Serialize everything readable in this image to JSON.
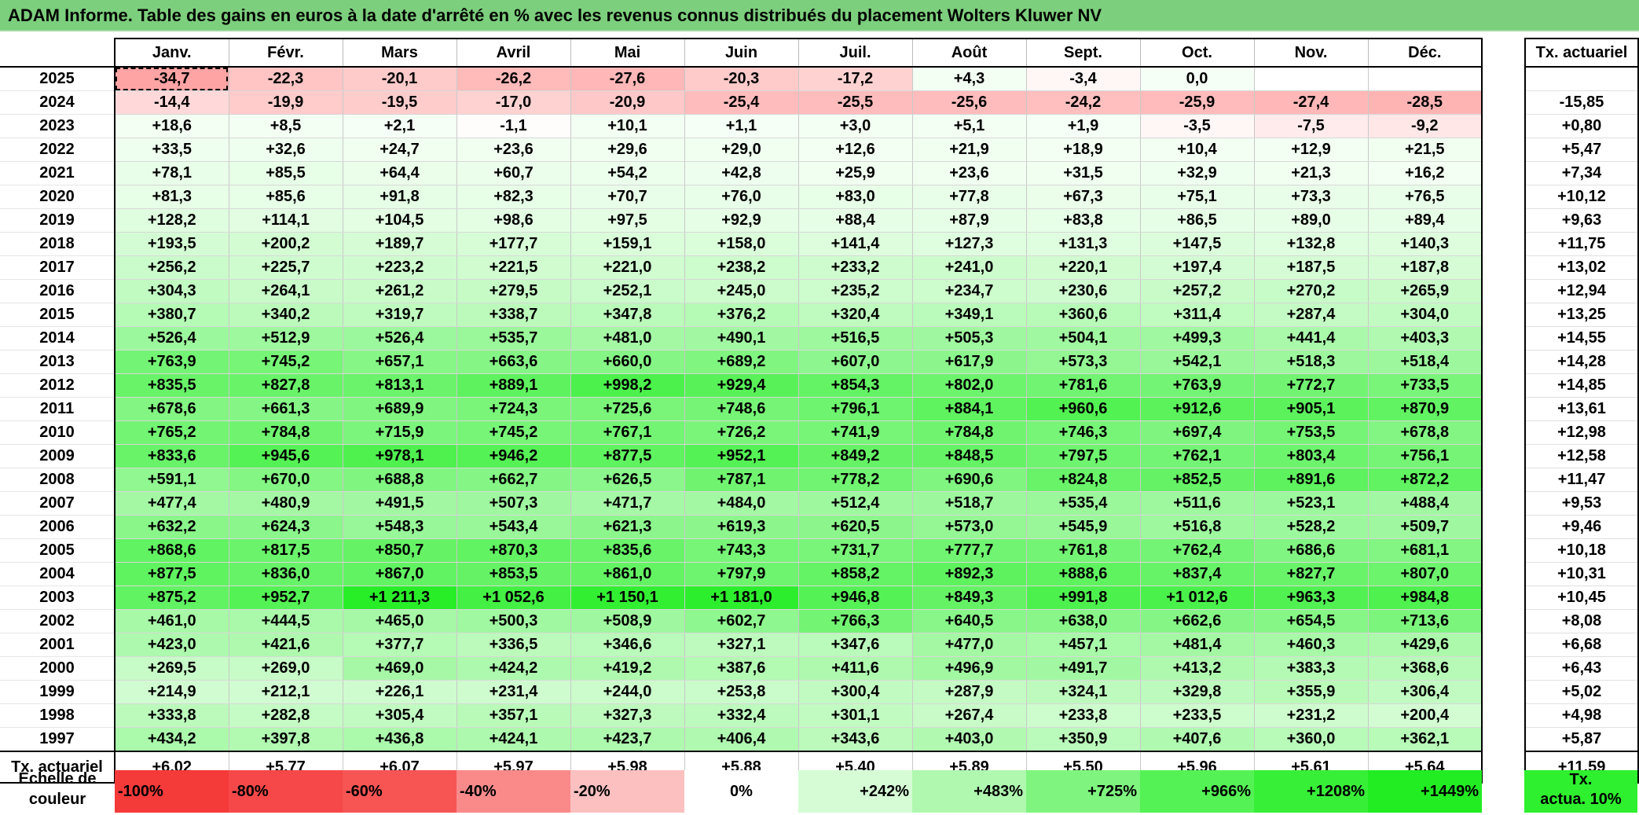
{
  "title": "ADAM Informe. Table des gains en euros à la date d'arrêté en % avec les revenus connus distribués du placement Wolters Kluwer NV",
  "months": [
    "Janv.",
    "Févr.",
    "Mars",
    "Avril",
    "Mai",
    "Juin",
    "Juil.",
    "Août",
    "Sept.",
    "Oct.",
    "Nov.",
    "Déc."
  ],
  "side_header": "Tx. actuariel",
  "rows": [
    {
      "year": "2025",
      "values": [
        "-34,7",
        "-22,3",
        "-20,1",
        "-26,2",
        "-27,6",
        "-20,3",
        "-17,2",
        "+4,3",
        "-3,4",
        "0,0",
        "",
        ""
      ],
      "tx": ""
    },
    {
      "year": "2024",
      "values": [
        "-14,4",
        "-19,9",
        "-19,5",
        "-17,0",
        "-20,9",
        "-25,4",
        "-25,5",
        "-25,6",
        "-24,2",
        "-25,9",
        "-27,4",
        "-28,5"
      ],
      "tx": "-15,85"
    },
    {
      "year": "2023",
      "values": [
        "+18,6",
        "+8,5",
        "+2,1",
        "-1,1",
        "+10,1",
        "+1,1",
        "+3,0",
        "+5,1",
        "+1,9",
        "-3,5",
        "-7,5",
        "-9,2"
      ],
      "tx": "+0,80"
    },
    {
      "year": "2022",
      "values": [
        "+33,5",
        "+32,6",
        "+24,7",
        "+23,6",
        "+29,6",
        "+29,0",
        "+12,6",
        "+21,9",
        "+18,9",
        "+10,4",
        "+12,9",
        "+21,5"
      ],
      "tx": "+5,47"
    },
    {
      "year": "2021",
      "values": [
        "+78,1",
        "+85,5",
        "+64,4",
        "+60,7",
        "+54,2",
        "+42,8",
        "+25,9",
        "+23,6",
        "+31,5",
        "+32,9",
        "+21,3",
        "+16,2"
      ],
      "tx": "+7,34"
    },
    {
      "year": "2020",
      "values": [
        "+81,3",
        "+85,6",
        "+91,8",
        "+82,3",
        "+70,7",
        "+76,0",
        "+83,0",
        "+77,8",
        "+67,3",
        "+75,1",
        "+73,3",
        "+76,5"
      ],
      "tx": "+10,12"
    },
    {
      "year": "2019",
      "values": [
        "+128,2",
        "+114,1",
        "+104,5",
        "+98,6",
        "+97,5",
        "+92,9",
        "+88,4",
        "+87,9",
        "+83,8",
        "+86,5",
        "+89,0",
        "+89,4"
      ],
      "tx": "+9,63"
    },
    {
      "year": "2018",
      "values": [
        "+193,5",
        "+200,2",
        "+189,7",
        "+177,7",
        "+159,1",
        "+158,0",
        "+141,4",
        "+127,3",
        "+131,3",
        "+147,5",
        "+132,8",
        "+140,3"
      ],
      "tx": "+11,75"
    },
    {
      "year": "2017",
      "values": [
        "+256,2",
        "+225,7",
        "+223,2",
        "+221,5",
        "+221,0",
        "+238,2",
        "+233,2",
        "+241,0",
        "+220,1",
        "+197,4",
        "+187,5",
        "+187,8"
      ],
      "tx": "+13,02"
    },
    {
      "year": "2016",
      "values": [
        "+304,3",
        "+264,1",
        "+261,2",
        "+279,5",
        "+252,1",
        "+245,0",
        "+235,2",
        "+234,7",
        "+230,6",
        "+257,2",
        "+270,2",
        "+265,9"
      ],
      "tx": "+12,94"
    },
    {
      "year": "2015",
      "values": [
        "+380,7",
        "+340,2",
        "+319,7",
        "+338,7",
        "+347,8",
        "+376,2",
        "+320,4",
        "+349,1",
        "+360,6",
        "+311,4",
        "+287,4",
        "+304,0"
      ],
      "tx": "+13,25"
    },
    {
      "year": "2014",
      "values": [
        "+526,4",
        "+512,9",
        "+526,4",
        "+535,7",
        "+481,0",
        "+490,1",
        "+516,5",
        "+505,3",
        "+504,1",
        "+499,3",
        "+441,4",
        "+403,3"
      ],
      "tx": "+14,55"
    },
    {
      "year": "2013",
      "values": [
        "+763,9",
        "+745,2",
        "+657,1",
        "+663,6",
        "+660,0",
        "+689,2",
        "+607,0",
        "+617,9",
        "+573,3",
        "+542,1",
        "+518,3",
        "+518,4"
      ],
      "tx": "+14,28"
    },
    {
      "year": "2012",
      "values": [
        "+835,5",
        "+827,8",
        "+813,1",
        "+889,1",
        "+998,2",
        "+929,4",
        "+854,3",
        "+802,0",
        "+781,6",
        "+763,9",
        "+772,7",
        "+733,5"
      ],
      "tx": "+14,85"
    },
    {
      "year": "2011",
      "values": [
        "+678,6",
        "+661,3",
        "+689,9",
        "+724,3",
        "+725,6",
        "+748,6",
        "+796,1",
        "+884,1",
        "+960,6",
        "+912,6",
        "+905,1",
        "+870,9"
      ],
      "tx": "+13,61"
    },
    {
      "year": "2010",
      "values": [
        "+765,2",
        "+784,8",
        "+715,9",
        "+745,2",
        "+767,1",
        "+726,2",
        "+741,9",
        "+784,8",
        "+746,3",
        "+697,4",
        "+753,5",
        "+678,8"
      ],
      "tx": "+12,98"
    },
    {
      "year": "2009",
      "values": [
        "+833,6",
        "+945,6",
        "+978,1",
        "+946,2",
        "+877,5",
        "+952,1",
        "+849,2",
        "+848,5",
        "+797,5",
        "+762,1",
        "+803,4",
        "+756,1"
      ],
      "tx": "+12,58"
    },
    {
      "year": "2008",
      "values": [
        "+591,1",
        "+670,0",
        "+688,8",
        "+662,7",
        "+626,5",
        "+787,1",
        "+778,2",
        "+690,6",
        "+824,8",
        "+852,5",
        "+891,6",
        "+872,2"
      ],
      "tx": "+11,47"
    },
    {
      "year": "2007",
      "values": [
        "+477,4",
        "+480,9",
        "+491,5",
        "+507,3",
        "+471,7",
        "+484,0",
        "+512,4",
        "+518,7",
        "+535,4",
        "+511,6",
        "+523,1",
        "+488,4"
      ],
      "tx": "+9,53"
    },
    {
      "year": "2006",
      "values": [
        "+632,2",
        "+624,3",
        "+548,3",
        "+543,4",
        "+621,3",
        "+619,3",
        "+620,5",
        "+573,0",
        "+545,9",
        "+516,8",
        "+528,2",
        "+509,7"
      ],
      "tx": "+9,46"
    },
    {
      "year": "2005",
      "values": [
        "+868,6",
        "+817,5",
        "+850,7",
        "+870,3",
        "+835,6",
        "+743,3",
        "+731,7",
        "+777,7",
        "+761,8",
        "+762,4",
        "+686,6",
        "+681,1"
      ],
      "tx": "+10,18"
    },
    {
      "year": "2004",
      "values": [
        "+877,5",
        "+836,0",
        "+867,0",
        "+853,5",
        "+861,0",
        "+797,9",
        "+858,2",
        "+892,3",
        "+888,6",
        "+837,4",
        "+827,7",
        "+807,0"
      ],
      "tx": "+10,31"
    },
    {
      "year": "2003",
      "values": [
        "+875,2",
        "+952,7",
        "+1 211,3",
        "+1 052,6",
        "+1 150,1",
        "+1 181,0",
        "+946,8",
        "+849,3",
        "+991,8",
        "+1 012,6",
        "+963,3",
        "+984,8"
      ],
      "tx": "+10,45"
    },
    {
      "year": "2002",
      "values": [
        "+461,0",
        "+444,5",
        "+465,0",
        "+500,3",
        "+508,9",
        "+602,7",
        "+766,3",
        "+640,5",
        "+638,0",
        "+662,6",
        "+654,5",
        "+713,6"
      ],
      "tx": "+8,08"
    },
    {
      "year": "2001",
      "values": [
        "+423,0",
        "+421,6",
        "+377,7",
        "+336,5",
        "+346,6",
        "+327,1",
        "+347,6",
        "+477,0",
        "+457,1",
        "+481,4",
        "+460,3",
        "+429,6"
      ],
      "tx": "+6,68"
    },
    {
      "year": "2000",
      "values": [
        "+269,5",
        "+269,0",
        "+469,0",
        "+424,2",
        "+419,2",
        "+387,6",
        "+411,6",
        "+496,9",
        "+491,7",
        "+413,2",
        "+383,3",
        "+368,6"
      ],
      "tx": "+6,43"
    },
    {
      "year": "1999",
      "values": [
        "+214,9",
        "+212,1",
        "+226,1",
        "+231,4",
        "+244,0",
        "+253,8",
        "+300,4",
        "+287,9",
        "+324,1",
        "+329,8",
        "+355,9",
        "+306,4"
      ],
      "tx": "+5,02"
    },
    {
      "year": "1998",
      "values": [
        "+333,8",
        "+282,8",
        "+305,4",
        "+357,1",
        "+327,3",
        "+332,4",
        "+301,1",
        "+267,4",
        "+233,8",
        "+233,5",
        "+231,2",
        "+200,4"
      ],
      "tx": "+4,98"
    },
    {
      "year": "1997",
      "values": [
        "+434,2",
        "+397,8",
        "+436,8",
        "+424,1",
        "+423,7",
        "+406,4",
        "+343,6",
        "+403,0",
        "+350,9",
        "+407,6",
        "+360,0",
        "+362,1"
      ],
      "tx": "+5,87"
    }
  ],
  "totals": {
    "label": "Tx. actuariel",
    "values": [
      "+6,02",
      "+5,77",
      "+6,07",
      "+5,97",
      "+5,98",
      "+5,88",
      "+5,40",
      "+5,89",
      "+5,50",
      "+5,96",
      "+5,61",
      "+5,64"
    ],
    "tx": "+11,59"
  },
  "scale": {
    "label_line1": "Echelle de",
    "label_line2": "couleur",
    "items": [
      {
        "label": "-100%",
        "color": "#f53a3a",
        "kind": "neg"
      },
      {
        "label": "-80%",
        "color": "#f64848",
        "kind": "neg"
      },
      {
        "label": "-60%",
        "color": "#f75454",
        "kind": "neg"
      },
      {
        "label": "-40%",
        "color": "#fa8a8a",
        "kind": "neg"
      },
      {
        "label": "-20%",
        "color": "#fcc0c0",
        "kind": "neg"
      },
      {
        "label": "0%",
        "color": "#ffffff",
        "kind": "zero"
      },
      {
        "label": "+242%",
        "color": "#d6fcd6",
        "kind": "pos"
      },
      {
        "label": "+483%",
        "color": "#b0f8b0",
        "kind": "pos"
      },
      {
        "label": "+725%",
        "color": "#7ff57f",
        "kind": "pos"
      },
      {
        "label": "+966%",
        "color": "#55f255",
        "kind": "pos"
      },
      {
        "label": "+1208%",
        "color": "#38ef38",
        "kind": "pos"
      },
      {
        "label": "+1449%",
        "color": "#22ec22",
        "kind": "pos"
      }
    ],
    "tx_line1": "Tx.",
    "tx_line2": "actua. 10%",
    "tx_color": "#2ef02e"
  },
  "chart_data": {
    "type": "heatmap",
    "title": "ADAM Informe. Table des gains en euros à la date d'arrêté en % avec les revenus connus distribués du placement Wolters Kluwer NV",
    "x": [
      "Janv.",
      "Févr.",
      "Mars",
      "Avril",
      "Mai",
      "Juin",
      "Juil.",
      "Août",
      "Sept.",
      "Oct.",
      "Nov.",
      "Déc."
    ],
    "y": [
      "2025",
      "2024",
      "2023",
      "2022",
      "2021",
      "2020",
      "2019",
      "2018",
      "2017",
      "2016",
      "2015",
      "2014",
      "2013",
      "2012",
      "2011",
      "2010",
      "2009",
      "2008",
      "2007",
      "2006",
      "2005",
      "2004",
      "2003",
      "2002",
      "2001",
      "2000",
      "1999",
      "1998",
      "1997"
    ],
    "color_scale": {
      "min": -100,
      "max": 1449,
      "negative_colors": "red",
      "positive_colors": "green"
    }
  }
}
